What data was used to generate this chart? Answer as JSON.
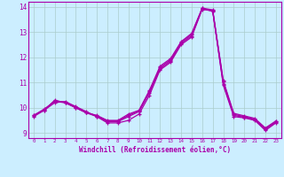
{
  "xlabel": "Windchill (Refroidissement éolien,°C)",
  "background_color": "#cceeff",
  "grid_color": "#aacccc",
  "line_color": "#aa00aa",
  "xlim": [
    -0.5,
    23.5
  ],
  "ylim": [
    8.8,
    14.2
  ],
  "yticks": [
    9,
    10,
    11,
    12,
    13,
    14
  ],
  "xticks": [
    0,
    1,
    2,
    3,
    4,
    5,
    6,
    7,
    8,
    9,
    10,
    11,
    12,
    13,
    14,
    15,
    16,
    17,
    18,
    19,
    20,
    21,
    22,
    23
  ],
  "series": [
    [
      9.7,
      9.9,
      10.2,
      10.25,
      10.05,
      9.85,
      9.65,
      9.4,
      9.4,
      9.5,
      9.75,
      10.5,
      11.5,
      11.8,
      12.5,
      12.8,
      13.9,
      13.85,
      10.9,
      9.65,
      9.6,
      9.5,
      9.1,
      9.4
    ],
    [
      9.7,
      9.95,
      10.25,
      10.2,
      10.0,
      9.8,
      9.65,
      9.45,
      9.45,
      9.65,
      9.85,
      10.6,
      11.55,
      11.85,
      12.55,
      12.85,
      13.92,
      13.82,
      10.95,
      9.7,
      9.62,
      9.52,
      9.15,
      9.42
    ],
    [
      9.68,
      9.92,
      10.28,
      10.22,
      10.02,
      9.82,
      9.68,
      9.48,
      9.48,
      9.7,
      9.88,
      10.65,
      11.6,
      11.9,
      12.6,
      12.9,
      13.94,
      13.84,
      11.05,
      9.74,
      9.65,
      9.55,
      9.18,
      9.45
    ],
    [
      9.65,
      9.9,
      10.3,
      10.2,
      10.0,
      9.8,
      9.7,
      9.5,
      9.5,
      9.75,
      9.9,
      10.7,
      11.65,
      11.95,
      12.62,
      12.95,
      13.95,
      13.88,
      11.08,
      9.78,
      9.68,
      9.58,
      9.2,
      9.48
    ]
  ]
}
